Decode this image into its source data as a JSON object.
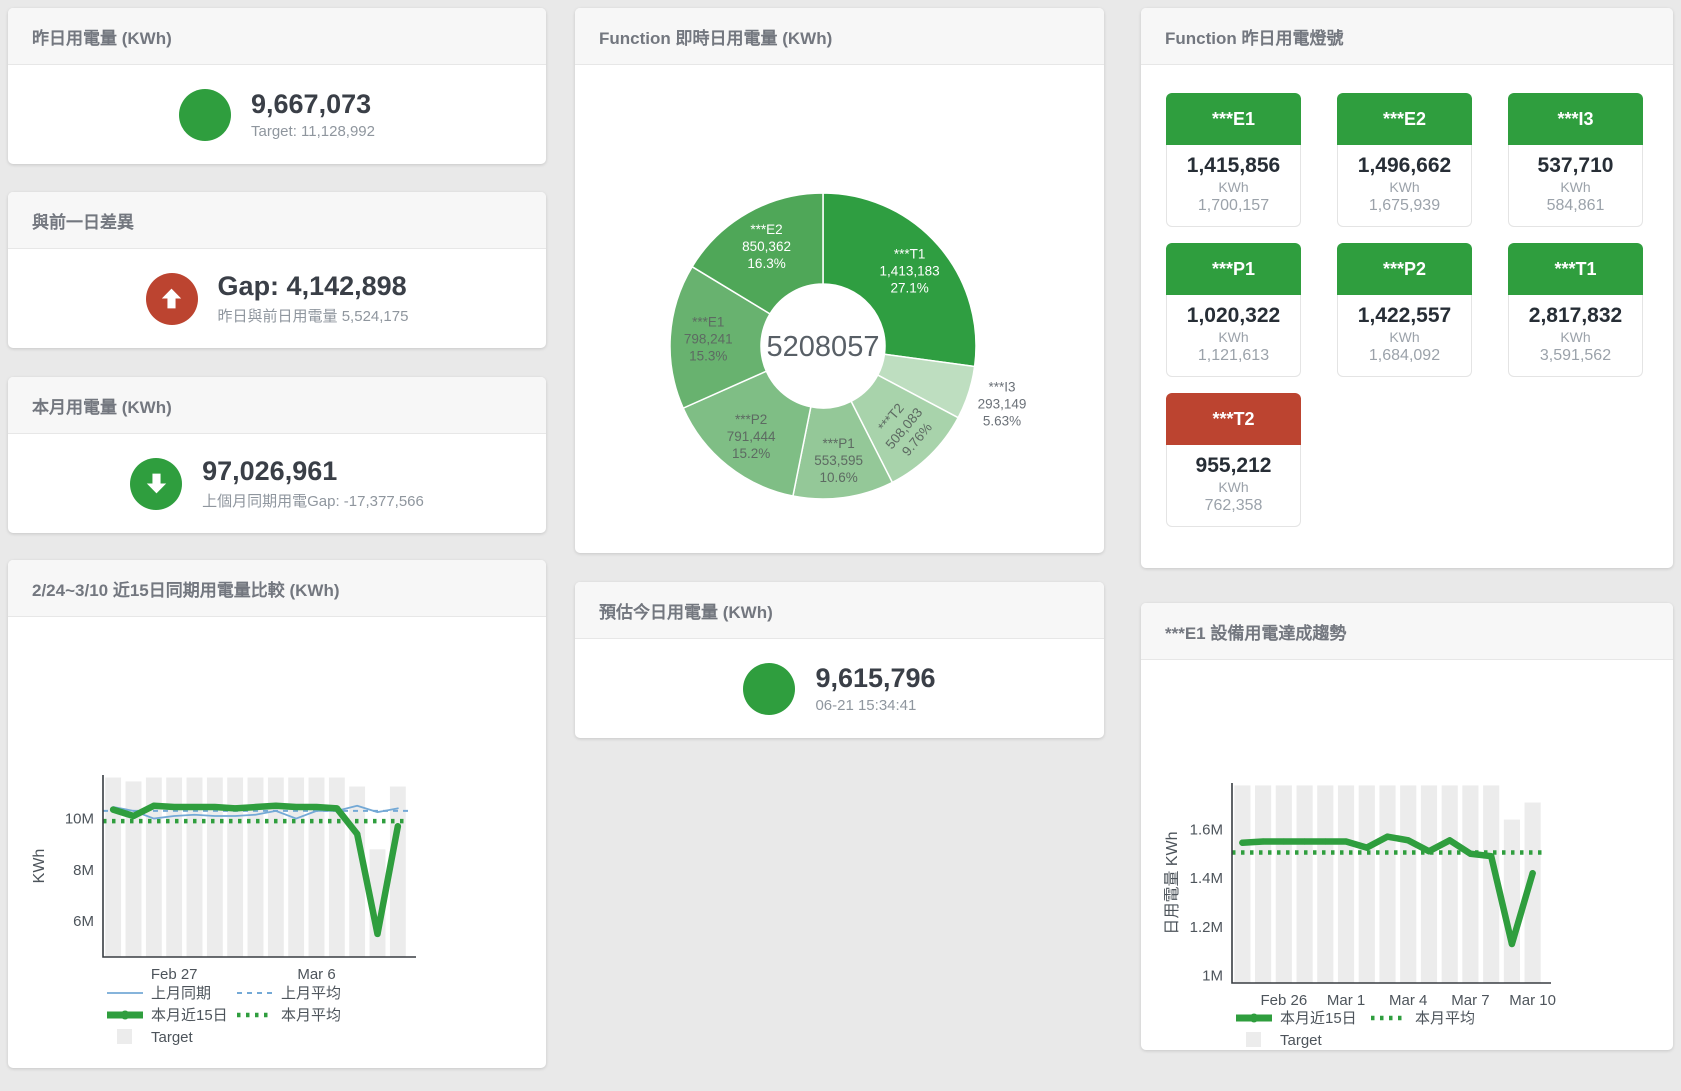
{
  "colors": {
    "green": "#2f9e3e",
    "red": "#bc4430",
    "blue_line": "#74a9d6",
    "target_bar": "#ececec",
    "value_text": "#3a3f47",
    "sub_text": "#8f969e",
    "header_text": "#73777f"
  },
  "cards": {
    "yesterday": {
      "title": "昨日用電量 (KWh)",
      "value": "9,667,073",
      "sub": "Target: 11,128,992"
    },
    "diff_prev_day": {
      "title": "與前一日差異",
      "value": "Gap: 4,142,898",
      "sub": "昨日與前日用電量 5,524,175"
    },
    "month": {
      "title": "本月用電量 (KWh)",
      "value": "97,026,961",
      "sub": "上個月同期用電Gap: -17,377,566"
    },
    "compare": {
      "title": "2/24~3/10 近15日同期用電量比較 (KWh)"
    },
    "realtime": {
      "title": "Function 即時日用電量 (KWh)"
    },
    "estimate": {
      "title": "預估今日用電量 (KWh)",
      "value": "9,615,796",
      "sub": "06-21 15:34:41"
    },
    "lamps": {
      "title": "Function 昨日用電燈號",
      "unit_label": "KWh",
      "tiles": [
        {
          "name": "***E1",
          "value": "1,415,856",
          "target": "1,700,157",
          "status": "green"
        },
        {
          "name": "***E2",
          "value": "1,496,662",
          "target": "1,675,939",
          "status": "green"
        },
        {
          "name": "***I3",
          "value": "537,710",
          "target": "584,861",
          "status": "green"
        },
        {
          "name": "***P1",
          "value": "1,020,322",
          "target": "1,121,613",
          "status": "green"
        },
        {
          "name": "***P2",
          "value": "1,422,557",
          "target": "1,684,092",
          "status": "green"
        },
        {
          "name": "***T1",
          "value": "2,817,832",
          "target": "3,591,562",
          "status": "green"
        },
        {
          "name": "***T2",
          "value": "955,212",
          "target": "762,358",
          "status": "red"
        }
      ]
    },
    "e1_trend": {
      "title": "***E1 設備用電達成趨勢"
    }
  },
  "chart_data": [
    {
      "id": "donut",
      "type": "pie",
      "title": "Function 即時日用電量 (KWh)",
      "center_total": "5208057",
      "segments": [
        {
          "label": "***T1",
          "value": 1413183,
          "pct": "27.1%",
          "color": "#2f9e41",
          "text": "white"
        },
        {
          "label": "***I3",
          "value": 293149,
          "pct": "5.63%",
          "color": "#bedec0",
          "text": "outside"
        },
        {
          "label": "***T2",
          "value": 508083,
          "pct": "9.76%",
          "color": "#a8d3ab",
          "text": "dark",
          "rotate": -50
        },
        {
          "label": "***P1",
          "value": 553595,
          "pct": "10.6%",
          "color": "#94c898",
          "text": "dark"
        },
        {
          "label": "***P2",
          "value": 791444,
          "pct": "15.2%",
          "color": "#7fbe85",
          "text": "dark"
        },
        {
          "label": "***E1",
          "value": 798241,
          "pct": "15.3%",
          "color": "#68b26f",
          "text": "dark"
        },
        {
          "label": "***E2",
          "value": 850362,
          "pct": "16.3%",
          "color": "#4fa758",
          "text": "white"
        }
      ]
    },
    {
      "id": "compare15",
      "type": "line+bar",
      "title": "2/24~3/10 近15日同期用電量比較 (KWh)",
      "ylabel": "KWh",
      "ylim": [
        4.6,
        11.7
      ],
      "yticks": [
        {
          "v": 6,
          "label": "6M"
        },
        {
          "v": 8,
          "label": "8M"
        },
        {
          "v": 10,
          "label": "10M"
        }
      ],
      "categories": [
        "Feb 24",
        "Feb 25",
        "Feb 26",
        "Feb 27",
        "Feb 28",
        "Mar 1",
        "Mar 2",
        "Mar 3",
        "Mar 4",
        "Mar 5",
        "Mar 6",
        "Mar 7",
        "Mar 8",
        "Mar 9",
        "Mar 10"
      ],
      "xticks": [
        {
          "i": 3,
          "label": "Feb 27"
        },
        {
          "i": 10,
          "label": "Mar 6"
        }
      ],
      "target_bars": [
        11.6,
        11.45,
        11.6,
        11.6,
        11.6,
        11.6,
        11.6,
        11.6,
        11.6,
        11.6,
        11.6,
        11.6,
        11.25,
        8.8,
        11.25
      ],
      "series": [
        {
          "name": "上月同期",
          "style": "line-blue",
          "values": [
            10.45,
            10.3,
            10.0,
            10.1,
            10.15,
            10.1,
            10.1,
            10.15,
            10.3,
            10.0,
            10.3,
            10.3,
            10.5,
            10.25,
            10.4
          ]
        },
        {
          "name": "上月平均",
          "style": "dash-blue",
          "const": 10.3
        },
        {
          "name": "本月近15日",
          "style": "line-green-thick",
          "values": [
            10.35,
            10.1,
            10.5,
            10.45,
            10.45,
            10.45,
            10.4,
            10.45,
            10.5,
            10.45,
            10.45,
            10.4,
            9.4,
            5.5,
            9.7
          ]
        },
        {
          "name": "本月平均",
          "style": "dots-green",
          "const": 9.9
        },
        {
          "name": "Target",
          "style": "square-gray"
        }
      ]
    },
    {
      "id": "e1trend",
      "type": "line+bar",
      "title": "***E1 設備用電達成趨勢",
      "ylabel": "日用電量 KWh",
      "ylim": [
        0.97,
        1.79
      ],
      "yticks": [
        {
          "v": 1,
          "label": "1M"
        },
        {
          "v": 1.2,
          "label": "1.2M"
        },
        {
          "v": 1.4,
          "label": "1.4M"
        },
        {
          "v": 1.6,
          "label": "1.6M"
        }
      ],
      "categories": [
        "Feb 24",
        "Feb 25",
        "Feb 26",
        "Feb 27",
        "Feb 28",
        "Mar 1",
        "Mar 2",
        "Mar 3",
        "Mar 4",
        "Mar 5",
        "Mar 6",
        "Mar 7",
        "Mar 8",
        "Mar 9",
        "Mar 10"
      ],
      "xticks": [
        {
          "i": 2,
          "label": "Feb 26"
        },
        {
          "i": 5,
          "label": "Mar 1"
        },
        {
          "i": 8,
          "label": "Mar 4"
        },
        {
          "i": 11,
          "label": "Mar 7"
        },
        {
          "i": 14,
          "label": "Mar 10"
        }
      ],
      "target_bars": [
        1.78,
        1.78,
        1.78,
        1.78,
        1.78,
        1.78,
        1.78,
        1.78,
        1.78,
        1.78,
        1.78,
        1.78,
        1.78,
        1.64,
        1.71
      ],
      "series": [
        {
          "name": "本月近15日",
          "style": "line-green-thick",
          "values": [
            1.545,
            1.55,
            1.55,
            1.55,
            1.55,
            1.55,
            1.525,
            1.57,
            1.555,
            1.51,
            1.555,
            1.5,
            1.49,
            1.13,
            1.42
          ]
        },
        {
          "name": "本月平均",
          "style": "dots-green",
          "const": 1.505
        },
        {
          "name": "Target",
          "style": "square-gray"
        }
      ]
    }
  ]
}
